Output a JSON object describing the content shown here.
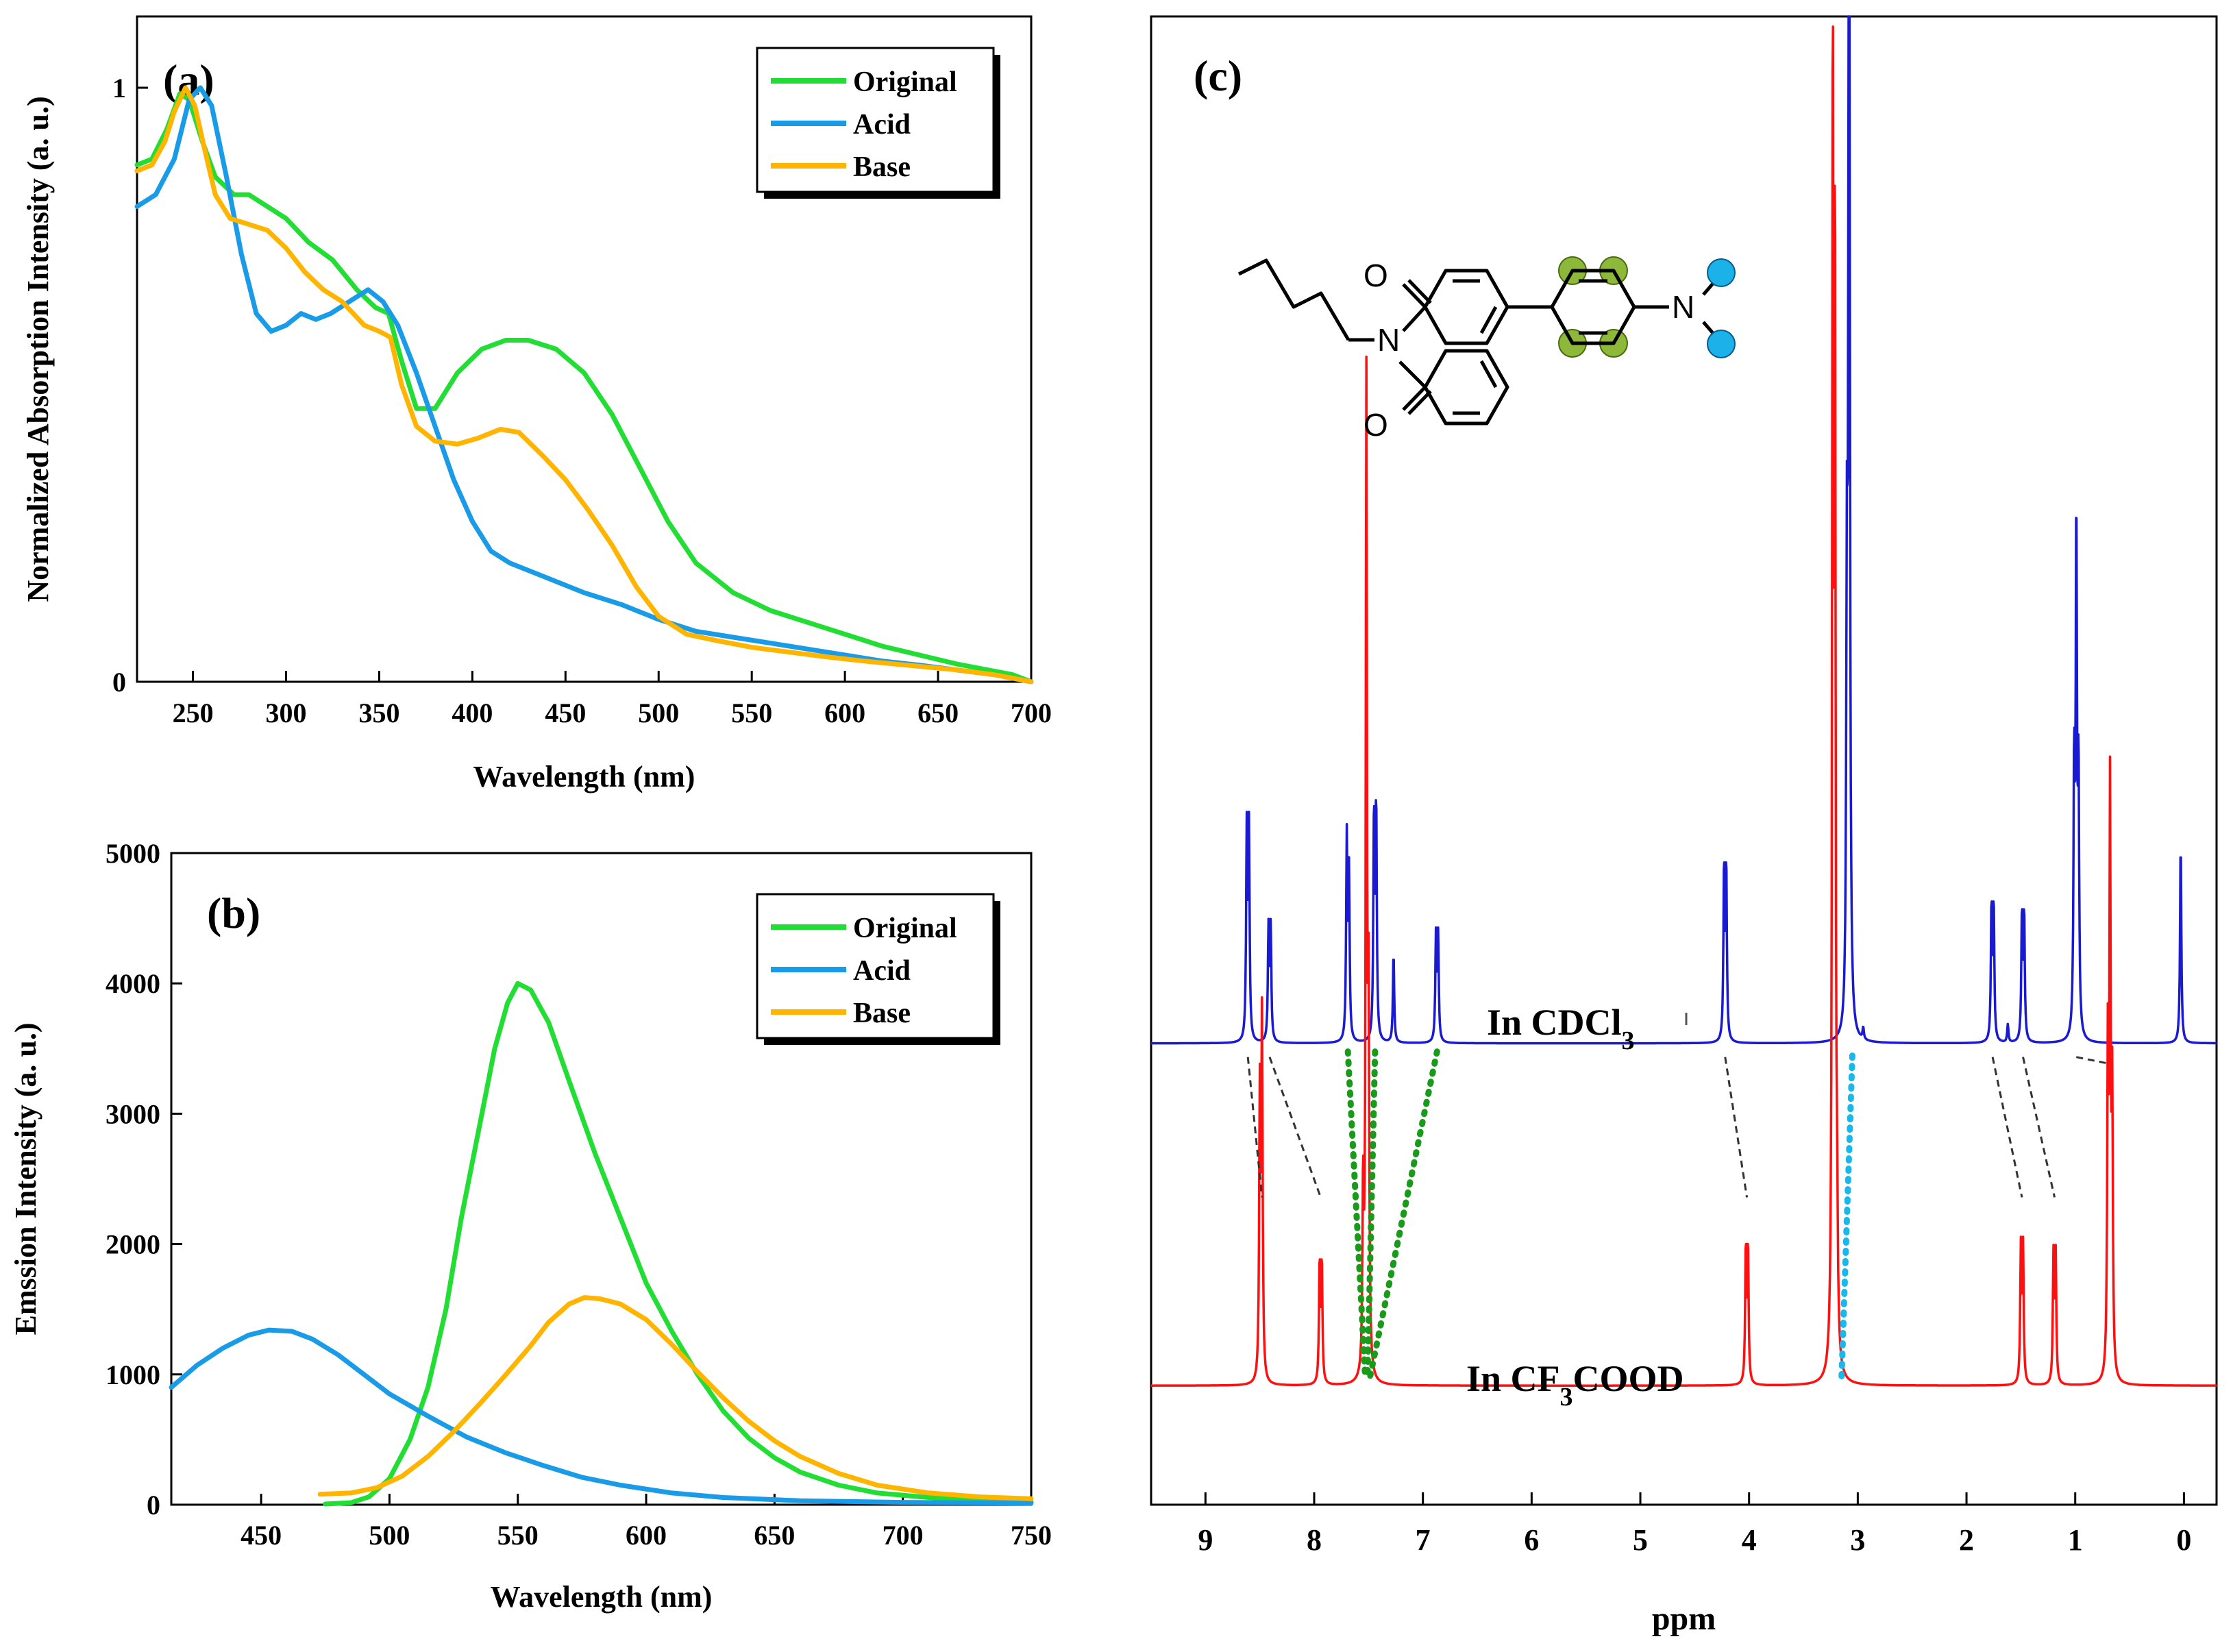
{
  "colors": {
    "original": "#22dd33",
    "acid": "#1a9be8",
    "base": "#ffb400",
    "cdcl3": "#1a1ad0",
    "cf3cood": "#ff1010",
    "green_hl": "#8db83a",
    "blue_hl": "#1ab2e8",
    "green_dash": "#1a9a1a",
    "cyan_dash": "#18b8ec"
  },
  "legend_labels": {
    "original": "Original",
    "acid": "Acid",
    "base": "Base"
  },
  "chart_data": [
    {
      "id": "a",
      "type": "line",
      "panel_label": "(a)",
      "xlabel": "Wavelength (nm)",
      "ylabel": "Normalized Absorption Intensity (a. u.)",
      "xlim": [
        220,
        700
      ],
      "ylim": [
        0,
        1.12
      ],
      "xticks": [
        250,
        300,
        350,
        400,
        450,
        500,
        550,
        600,
        650,
        700
      ],
      "yticks": [
        0,
        1
      ],
      "legend": "top-right",
      "series": [
        {
          "name": "Original",
          "color_key": "original",
          "points": [
            [
              220,
              0.87
            ],
            [
              228,
              0.88
            ],
            [
              236,
              0.93
            ],
            [
              243,
              0.99
            ],
            [
              248,
              0.98
            ],
            [
              255,
              0.91
            ],
            [
              262,
              0.85
            ],
            [
              272,
              0.82
            ],
            [
              280,
              0.82
            ],
            [
              290,
              0.8
            ],
            [
              300,
              0.78
            ],
            [
              312,
              0.74
            ],
            [
              325,
              0.71
            ],
            [
              338,
              0.66
            ],
            [
              348,
              0.63
            ],
            [
              355,
              0.62
            ],
            [
              362,
              0.54
            ],
            [
              370,
              0.46
            ],
            [
              380,
              0.46
            ],
            [
              392,
              0.52
            ],
            [
              405,
              0.56
            ],
            [
              418,
              0.575
            ],
            [
              430,
              0.575
            ],
            [
              445,
              0.56
            ],
            [
              460,
              0.52
            ],
            [
              475,
              0.45
            ],
            [
              490,
              0.36
            ],
            [
              505,
              0.27
            ],
            [
              520,
              0.2
            ],
            [
              540,
              0.15
            ],
            [
              560,
              0.12
            ],
            [
              580,
              0.1
            ],
            [
              600,
              0.08
            ],
            [
              620,
              0.06
            ],
            [
              640,
              0.045
            ],
            [
              660,
              0.03
            ],
            [
              680,
              0.018
            ],
            [
              690,
              0.012
            ],
            [
              700,
              0.0
            ]
          ]
        },
        {
          "name": "Acid",
          "color_key": "acid",
          "points": [
            [
              220,
              0.8
            ],
            [
              230,
              0.82
            ],
            [
              240,
              0.88
            ],
            [
              248,
              0.98
            ],
            [
              254,
              1.0
            ],
            [
              260,
              0.97
            ],
            [
              268,
              0.85
            ],
            [
              276,
              0.72
            ],
            [
              284,
              0.62
            ],
            [
              292,
              0.59
            ],
            [
              300,
              0.6
            ],
            [
              308,
              0.62
            ],
            [
              316,
              0.61
            ],
            [
              324,
              0.62
            ],
            [
              334,
              0.64
            ],
            [
              344,
              0.66
            ],
            [
              352,
              0.64
            ],
            [
              360,
              0.6
            ],
            [
              370,
              0.52
            ],
            [
              380,
              0.43
            ],
            [
              390,
              0.34
            ],
            [
              400,
              0.27
            ],
            [
              410,
              0.22
            ],
            [
              420,
              0.2
            ],
            [
              440,
              0.175
            ],
            [
              460,
              0.15
            ],
            [
              480,
              0.13
            ],
            [
              500,
              0.105
            ],
            [
              520,
              0.085
            ],
            [
              540,
              0.075
            ],
            [
              560,
              0.065
            ],
            [
              580,
              0.055
            ],
            [
              600,
              0.045
            ],
            [
              620,
              0.035
            ],
            [
              640,
              0.028
            ],
            [
              660,
              0.02
            ],
            [
              680,
              0.012
            ],
            [
              700,
              0.0
            ]
          ]
        },
        {
          "name": "Base",
          "color_key": "base",
          "points": [
            [
              220,
              0.86
            ],
            [
              228,
              0.87
            ],
            [
              235,
              0.91
            ],
            [
              240,
              0.96
            ],
            [
              246,
              1.0
            ],
            [
              251,
              0.97
            ],
            [
              256,
              0.9
            ],
            [
              262,
              0.82
            ],
            [
              270,
              0.78
            ],
            [
              280,
              0.77
            ],
            [
              290,
              0.76
            ],
            [
              300,
              0.73
            ],
            [
              310,
              0.69
            ],
            [
              320,
              0.66
            ],
            [
              330,
              0.64
            ],
            [
              342,
              0.6
            ],
            [
              350,
              0.59
            ],
            [
              356,
              0.58
            ],
            [
              362,
              0.5
            ],
            [
              370,
              0.43
            ],
            [
              380,
              0.405
            ],
            [
              392,
              0.4
            ],
            [
              403,
              0.41
            ],
            [
              415,
              0.425
            ],
            [
              425,
              0.42
            ],
            [
              438,
              0.38
            ],
            [
              450,
              0.34
            ],
            [
              462,
              0.29
            ],
            [
              475,
              0.23
            ],
            [
              488,
              0.16
            ],
            [
              500,
              0.11
            ],
            [
              515,
              0.08
            ],
            [
              530,
              0.07
            ],
            [
              550,
              0.058
            ],
            [
              570,
              0.05
            ],
            [
              590,
              0.042
            ],
            [
              610,
              0.035
            ],
            [
              640,
              0.026
            ],
            [
              660,
              0.02
            ],
            [
              680,
              0.012
            ],
            [
              700,
              0.0
            ]
          ]
        }
      ]
    },
    {
      "id": "b",
      "type": "line",
      "panel_label": "(b)",
      "xlabel": "Wavelength (nm)",
      "ylabel": "Emssion Intensity (a. u.)",
      "xlim": [
        415,
        750
      ],
      "ylim": [
        0,
        5000
      ],
      "xticks": [
        450,
        500,
        550,
        600,
        650,
        700,
        750
      ],
      "yticks": [
        0,
        1000,
        2000,
        3000,
        4000,
        5000
      ],
      "legend": "top-right",
      "series": [
        {
          "name": "Original",
          "color_key": "original",
          "points": [
            [
              475,
              5
            ],
            [
              485,
              15
            ],
            [
              492,
              60
            ],
            [
              500,
              200
            ],
            [
              508,
              500
            ],
            [
              515,
              900
            ],
            [
              522,
              1500
            ],
            [
              528,
              2200
            ],
            [
              535,
              2900
            ],
            [
              541,
              3500
            ],
            [
              546,
              3850
            ],
            [
              550,
              4000
            ],
            [
              555,
              3950
            ],
            [
              562,
              3700
            ],
            [
              570,
              3250
            ],
            [
              580,
              2700
            ],
            [
              590,
              2200
            ],
            [
              600,
              1700
            ],
            [
              610,
              1330
            ],
            [
              620,
              1000
            ],
            [
              630,
              720
            ],
            [
              640,
              510
            ],
            [
              650,
              360
            ],
            [
              660,
              250
            ],
            [
              675,
              150
            ],
            [
              690,
              90
            ],
            [
              710,
              55
            ],
            [
              730,
              30
            ],
            [
              750,
              20
            ]
          ]
        },
        {
          "name": "Acid",
          "color_key": "acid",
          "points": [
            [
              415,
              900
            ],
            [
              425,
              1070
            ],
            [
              435,
              1200
            ],
            [
              445,
              1300
            ],
            [
              453,
              1340
            ],
            [
              462,
              1330
            ],
            [
              470,
              1270
            ],
            [
              480,
              1150
            ],
            [
              490,
              1000
            ],
            [
              500,
              850
            ],
            [
              515,
              680
            ],
            [
              530,
              520
            ],
            [
              545,
              400
            ],
            [
              560,
              300
            ],
            [
              575,
              210
            ],
            [
              590,
              150
            ],
            [
              610,
              90
            ],
            [
              630,
              55
            ],
            [
              660,
              30
            ],
            [
              700,
              18
            ],
            [
              750,
              12
            ]
          ]
        },
        {
          "name": "Base",
          "color_key": "base",
          "points": [
            [
              473,
              80
            ],
            [
              485,
              90
            ],
            [
              495,
              130
            ],
            [
              505,
              220
            ],
            [
              515,
              370
            ],
            [
              525,
              560
            ],
            [
              535,
              770
            ],
            [
              545,
              990
            ],
            [
              555,
              1220
            ],
            [
              562,
              1400
            ],
            [
              570,
              1540
            ],
            [
              576,
              1590
            ],
            [
              582,
              1580
            ],
            [
              590,
              1540
            ],
            [
              600,
              1420
            ],
            [
              610,
              1230
            ],
            [
              620,
              1020
            ],
            [
              630,
              820
            ],
            [
              640,
              640
            ],
            [
              650,
              490
            ],
            [
              660,
              370
            ],
            [
              675,
              240
            ],
            [
              690,
              150
            ],
            [
              710,
              90
            ],
            [
              730,
              60
            ],
            [
              750,
              45
            ]
          ]
        }
      ]
    },
    {
      "id": "c",
      "type": "line",
      "panel_label": "(c)",
      "xlabel": "ppm",
      "xlim": [
        9.5,
        -0.3
      ],
      "xticks": [
        9,
        8,
        7,
        6,
        5,
        4,
        3,
        2,
        1,
        0
      ],
      "series": [
        {
          "name": "In CDCl3",
          "color_key": "cdcl3",
          "label_parts": [
            "In CDCl",
            "3"
          ],
          "baseline_fraction": 0.69,
          "peaks": [
            [
              8.62,
              0.14
            ],
            [
              8.6,
              0.14
            ],
            [
              8.42,
              0.075
            ],
            [
              8.4,
              0.075
            ],
            [
              7.7,
              0.135
            ],
            [
              7.68,
              0.11
            ],
            [
              7.45,
              0.15
            ],
            [
              7.43,
              0.155
            ],
            [
              7.27,
              0.06
            ],
            [
              6.88,
              0.07
            ],
            [
              6.86,
              0.07
            ],
            [
              4.23,
              0.115
            ],
            [
              4.21,
              0.115
            ],
            [
              3.1,
              0.28
            ],
            [
              3.08,
              1.02
            ],
            [
              2.95,
              0.008
            ],
            [
              1.77,
              0.09
            ],
            [
              1.75,
              0.09
            ],
            [
              1.62,
              0.012
            ],
            [
              1.49,
              0.085
            ],
            [
              1.47,
              0.085
            ],
            [
              1.01,
              0.175
            ],
            [
              0.99,
              0.34
            ],
            [
              0.97,
              0.17
            ],
            [
              0.03,
              0.135
            ]
          ]
        },
        {
          "name": "In CF3COOD",
          "color_key": "cf3cood",
          "label_parts": [
            "In CF",
            "3",
            "COOD"
          ],
          "baseline_fraction": 0.92,
          "peaks": [
            [
              8.5,
              0.19
            ],
            [
              8.48,
              0.24
            ],
            [
              7.95,
              0.08
            ],
            [
              7.93,
              0.08
            ],
            [
              7.55,
              0.12
            ],
            [
              7.52,
              0.66
            ],
            [
              7.5,
              0.23
            ],
            [
              4.03,
              0.09
            ],
            [
              4.01,
              0.09
            ],
            [
              3.23,
              0.88
            ],
            [
              3.21,
              0.74
            ],
            [
              3.19,
              0.07
            ],
            [
              1.5,
              0.09
            ],
            [
              1.48,
              0.09
            ],
            [
              1.2,
              0.085
            ],
            [
              1.18,
              0.085
            ],
            [
              0.7,
              0.21
            ],
            [
              0.68,
              0.38
            ],
            [
              0.66,
              0.18
            ]
          ]
        }
      ]
    }
  ]
}
